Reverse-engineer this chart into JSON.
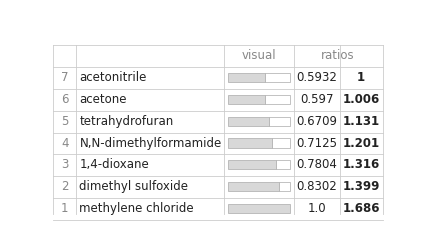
{
  "rows": [
    {
      "rank": 7,
      "name": "acetonitrile",
      "visual": 0.5932,
      "ratio": "1"
    },
    {
      "rank": 6,
      "name": "acetone",
      "visual": 0.597,
      "ratio": "1.006"
    },
    {
      "rank": 5,
      "name": "tetrahydrofuran",
      "visual": 0.6709,
      "ratio": "1.131"
    },
    {
      "rank": 4,
      "name": "N,N-dimethylformamide",
      "visual": 0.7125,
      "ratio": "1.201"
    },
    {
      "rank": 3,
      "name": "1,4-dioxane",
      "visual": 0.7804,
      "ratio": "1.316"
    },
    {
      "rank": 2,
      "name": "dimethyl sulfoxide",
      "visual": 0.8302,
      "ratio": "1.399"
    },
    {
      "rank": 1,
      "name": "methylene chloride",
      "visual": 1.0,
      "ratio": "1.686"
    }
  ],
  "header_visual": "visual",
  "header_ratios": "ratios",
  "bg_color": "#ffffff",
  "text_color": "#888888",
  "bold_text_color": "#222222",
  "bar_fill_color": "#d8d8d8",
  "bar_empty_color": "#ffffff",
  "bar_border_color": "#aaaaaa",
  "grid_color": "#cccccc",
  "font_size": 8.5,
  "header_font_size": 8.5
}
